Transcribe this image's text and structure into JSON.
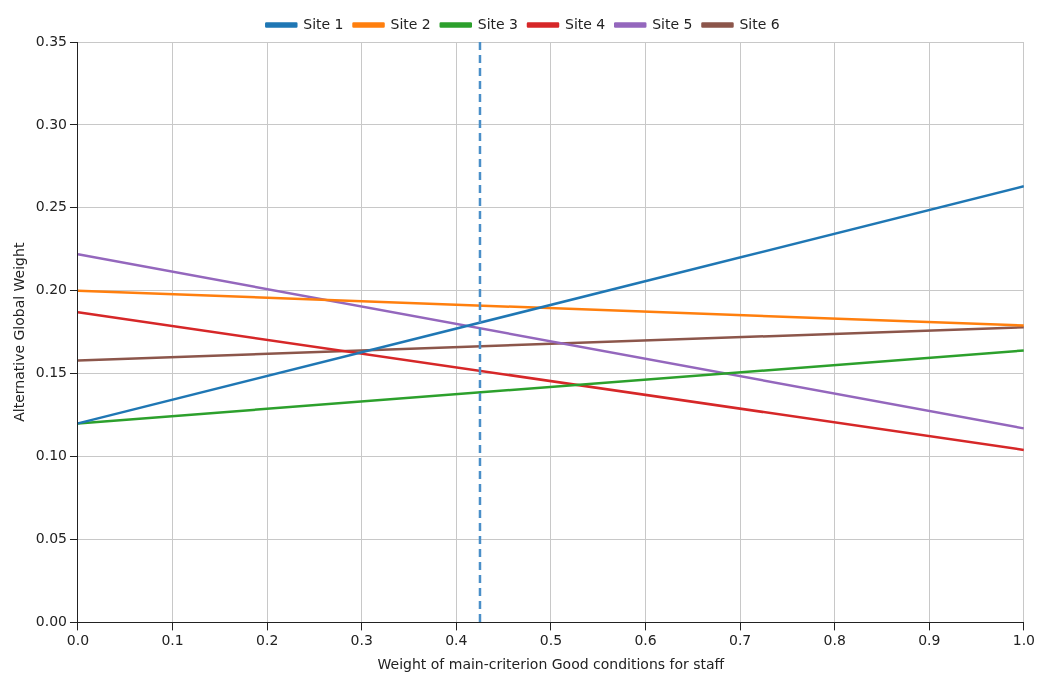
{
  "chart_data": {
    "type": "line",
    "xlabel": "Weight of main-criterion Good conditions for staff",
    "ylabel": "Alternative Global Weight",
    "x": [
      0,
      1
    ],
    "series": [
      {
        "name": "Site 1",
        "color": "#1f77b4",
        "values": [
          0.12,
          0.263
        ]
      },
      {
        "name": "Site 2",
        "color": "#ff7f0e",
        "values": [
          0.2,
          0.179
        ]
      },
      {
        "name": "Site 3",
        "color": "#2ca02c",
        "values": [
          0.12,
          0.164
        ]
      },
      {
        "name": "Site 4",
        "color": "#d62728",
        "values": [
          0.187,
          0.104
        ]
      },
      {
        "name": "Site 5",
        "color": "#9467bd",
        "values": [
          0.222,
          0.117
        ]
      },
      {
        "name": "Site 6",
        "color": "#8c564b",
        "values": [
          0.158,
          0.178
        ]
      }
    ],
    "xlim": [
      0,
      1
    ],
    "xticks": [
      {
        "value": 0,
        "label": "0.0"
      },
      0.1,
      0.2,
      0.3,
      0.4,
      0.5,
      0.6,
      0.7,
      0.8,
      0.9,
      {
        "value": 1,
        "label": "1.0"
      }
    ],
    "ylim": [
      0,
      0.35
    ],
    "yticks": [
      {
        "value": 0,
        "label": "0.00"
      },
      0.05,
      {
        "value": 0.1,
        "label": "0.10"
      },
      0.15,
      {
        "value": 0.2,
        "label": "0.20"
      },
      0.25,
      {
        "value": 0.3,
        "label": "0.30"
      },
      0.35
    ],
    "ref_lines": [
      {
        "axis": "x",
        "value": 0.425,
        "color": "#4a8fc8",
        "line_style": "dashed"
      }
    ],
    "grid": true,
    "legend": "top",
    "marker": "none",
    "line_style": "solid"
  }
}
